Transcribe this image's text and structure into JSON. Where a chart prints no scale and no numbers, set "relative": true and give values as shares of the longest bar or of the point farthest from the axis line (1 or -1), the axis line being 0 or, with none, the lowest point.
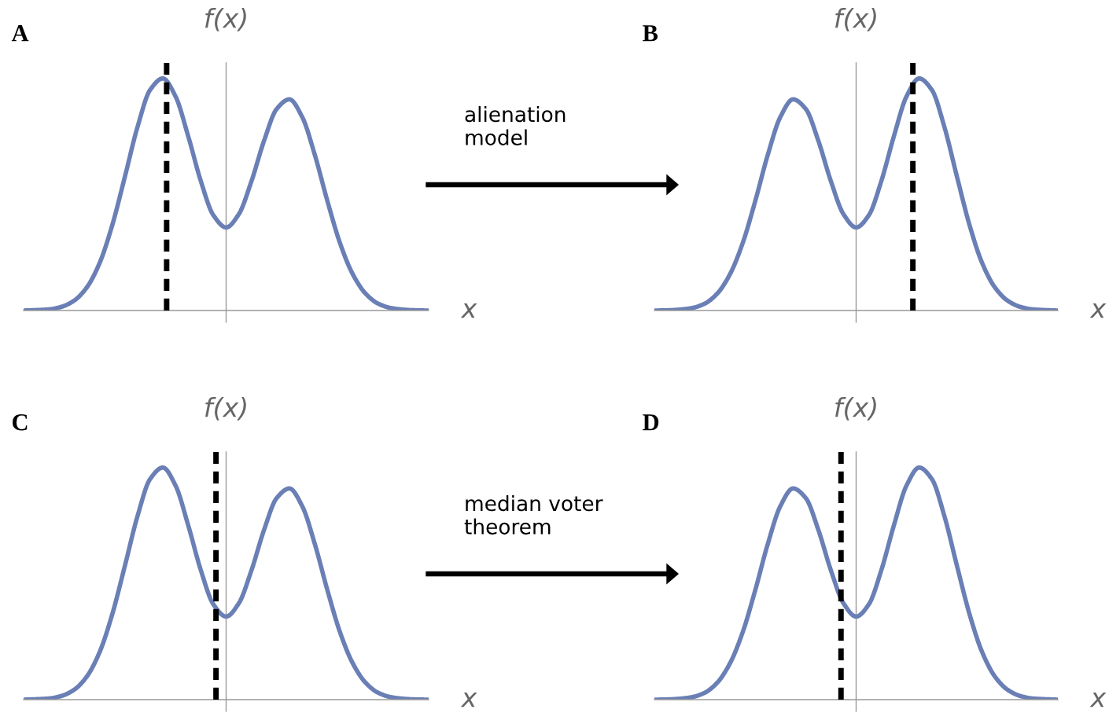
{
  "chart_data": [
    {
      "type": "line",
      "title": "A",
      "xlabel": "x",
      "ylabel": "f(x)",
      "relative": true,
      "categories": [
        null,
        null,
        null,
        null,
        null,
        null,
        null,
        null,
        null,
        null,
        null,
        null,
        null,
        null,
        null,
        null,
        null,
        null,
        null,
        null,
        null,
        null,
        null,
        null,
        null,
        null,
        null,
        null,
        null,
        null,
        null,
        null,
        null
      ],
      "series": [
        {
          "color": "#6a7fb5",
          "values": [
            0.0,
            0.002,
            0.005,
            0.016,
            0.043,
            0.1,
            0.204,
            0.367,
            0.576,
            0.791,
            0.951,
            1.0,
            0.923,
            0.752,
            0.558,
            0.41,
            0.358,
            0.415,
            0.557,
            0.732,
            0.869,
            0.91,
            0.835,
            0.672,
            0.472,
            0.29,
            0.157,
            0.074,
            0.03,
            0.011,
            0.004,
            0.001,
            0.0
          ]
        }
      ],
      "annotations": [
        "alienation model"
      ]
    },
    {
      "type": "line",
      "title": "B",
      "xlabel": "x",
      "ylabel": "f(x)",
      "relative": true,
      "categories": [
        null,
        null,
        null,
        null,
        null,
        null,
        null,
        null,
        null,
        null,
        null,
        null,
        null,
        null,
        null,
        null,
        null,
        null,
        null,
        null,
        null,
        null,
        null,
        null,
        null,
        null,
        null,
        null,
        null,
        null,
        null,
        null,
        null
      ],
      "series": [
        {
          "color": "#6a7fb5",
          "values": [
            0.0,
            0.001,
            0.004,
            0.011,
            0.03,
            0.074,
            0.157,
            0.29,
            0.472,
            0.672,
            0.835,
            0.91,
            0.869,
            0.732,
            0.557,
            0.415,
            0.358,
            0.41,
            0.558,
            0.752,
            0.923,
            1.0,
            0.951,
            0.791,
            0.576,
            0.367,
            0.204,
            0.1,
            0.043,
            0.016,
            0.005,
            0.002,
            0.0
          ]
        }
      ]
    },
    {
      "type": "line",
      "title": "C",
      "xlabel": "x",
      "ylabel": "f(x)",
      "relative": true,
      "categories": [
        null,
        null,
        null,
        null,
        null,
        null,
        null,
        null,
        null,
        null,
        null,
        null,
        null,
        null,
        null,
        null,
        null,
        null,
        null,
        null,
        null,
        null,
        null,
        null,
        null,
        null,
        null,
        null,
        null,
        null,
        null,
        null,
        null
      ],
      "series": [
        {
          "color": "#6a7fb5",
          "values": [
            0.0,
            0.002,
            0.005,
            0.016,
            0.043,
            0.1,
            0.204,
            0.367,
            0.576,
            0.791,
            0.951,
            1.0,
            0.923,
            0.752,
            0.558,
            0.41,
            0.358,
            0.415,
            0.557,
            0.732,
            0.869,
            0.91,
            0.835,
            0.672,
            0.472,
            0.29,
            0.157,
            0.074,
            0.03,
            0.011,
            0.004,
            0.001,
            0.0
          ]
        }
      ],
      "annotations": [
        "median voter theorem"
      ]
    },
    {
      "type": "line",
      "title": "D",
      "xlabel": "x",
      "ylabel": "f(x)",
      "relative": true,
      "categories": [
        null,
        null,
        null,
        null,
        null,
        null,
        null,
        null,
        null,
        null,
        null,
        null,
        null,
        null,
        null,
        null,
        null,
        null,
        null,
        null,
        null,
        null,
        null,
        null,
        null,
        null,
        null,
        null,
        null,
        null,
        null,
        null,
        null
      ],
      "series": [
        {
          "color": "#6a7fb5",
          "values": [
            0.0,
            0.001,
            0.004,
            0.011,
            0.03,
            0.074,
            0.157,
            0.29,
            0.472,
            0.672,
            0.835,
            0.91,
            0.869,
            0.732,
            0.557,
            0.415,
            0.358,
            0.41,
            0.558,
            0.752,
            0.923,
            1.0,
            0.951,
            0.791,
            0.576,
            0.367,
            0.204,
            0.1,
            0.043,
            0.016,
            0.005,
            0.002,
            0.0
          ]
        }
      ]
    }
  ]
}
